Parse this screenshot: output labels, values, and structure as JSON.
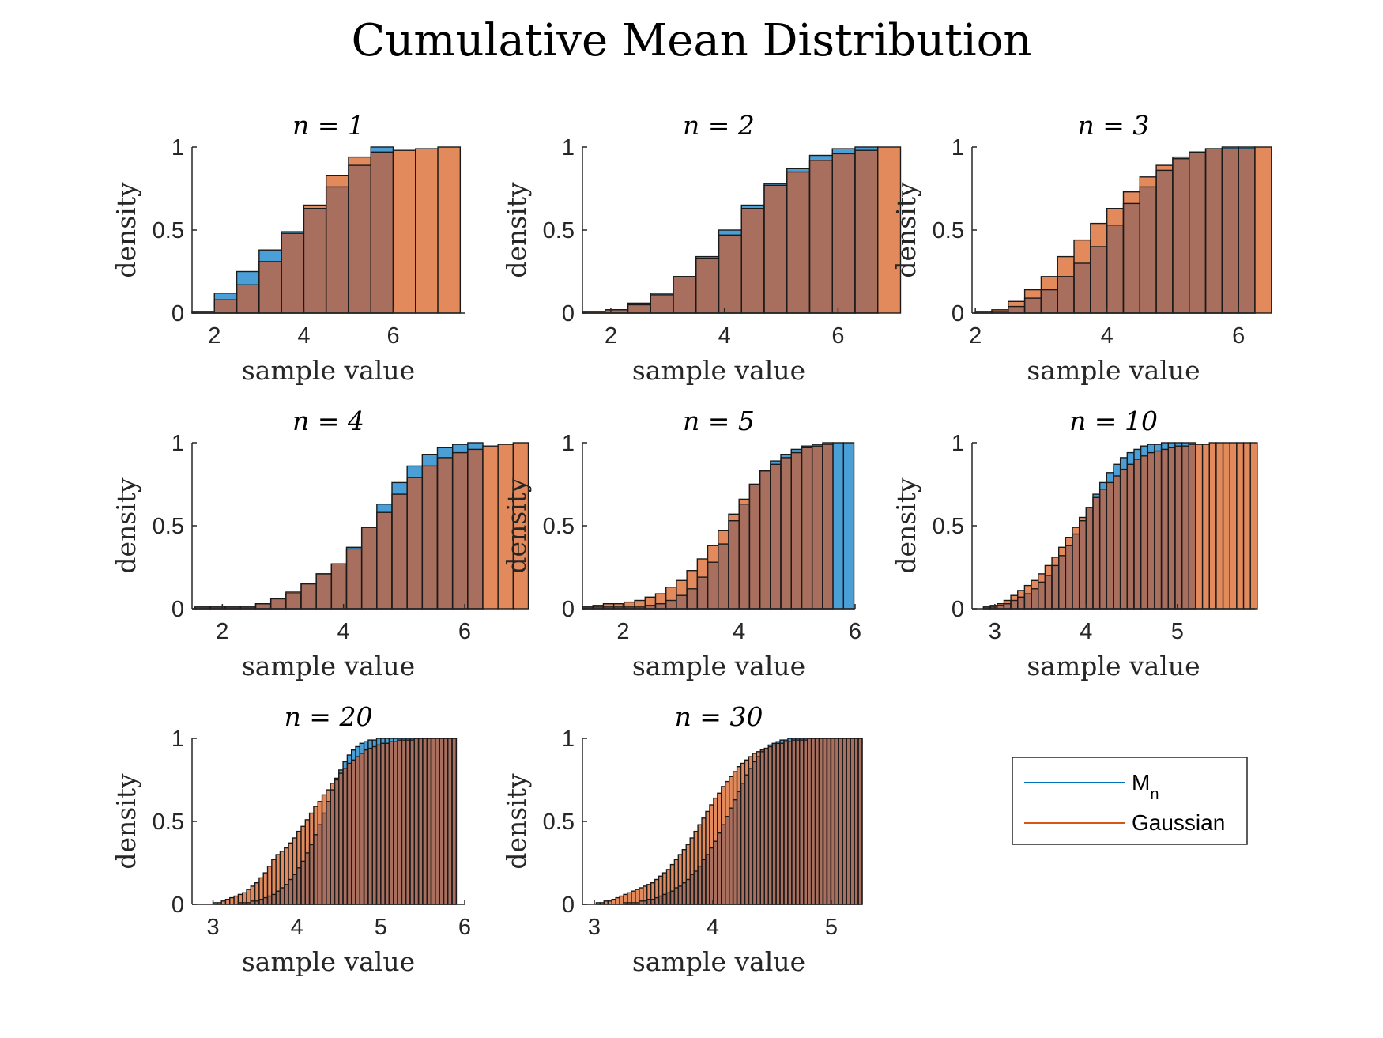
{
  "figure": {
    "title": "Cumulative Mean Distribution",
    "colors": {
      "mn": "#4a9fd6",
      "gaussian": "#e38a5c",
      "overlap": "#a86e5e",
      "edge": "#1a1a1a",
      "axis": "#262626"
    }
  },
  "legend": {
    "entries": [
      {
        "label": "M",
        "subscript": "n",
        "color": "#0072bd"
      },
      {
        "label": "Gaussian",
        "subscript": "",
        "color": "#d95319"
      }
    ]
  },
  "chart_data": [
    {
      "type": "bar",
      "title": "n = 1",
      "xlabel": "sample value",
      "ylabel": "density",
      "xlim": [
        1.5,
        7.6
      ],
      "ylim": [
        0,
        1
      ],
      "xticks": [
        2,
        4,
        6
      ],
      "yticks": [
        0,
        0.5,
        1
      ],
      "bin_start": 1.5,
      "bin_width": 0.5,
      "series": [
        {
          "name": "M_n",
          "values": [
            0.01,
            0.12,
            0.25,
            0.38,
            0.49,
            0.63,
            0.76,
            0.89,
            1.0
          ]
        },
        {
          "name": "Gaussian",
          "values": [
            0.01,
            0.08,
            0.17,
            0.31,
            0.48,
            0.65,
            0.83,
            0.94,
            0.97,
            0.98,
            0.99,
            1.0
          ]
        }
      ]
    },
    {
      "type": "bar",
      "title": "n = 2",
      "xlabel": "sample value",
      "ylabel": "density",
      "xlim": [
        1.5,
        6.3
      ],
      "ylim": [
        0,
        1
      ],
      "xticks": [
        2,
        4,
        6
      ],
      "yticks": [
        0,
        0.5,
        1
      ],
      "bin_start": 1.5,
      "bin_width": 0.4,
      "series": [
        {
          "name": "M_n",
          "values": [
            0.01,
            0.02,
            0.06,
            0.12,
            0.22,
            0.34,
            0.5,
            0.65,
            0.78,
            0.87,
            0.95,
            0.99,
            1.0
          ]
        },
        {
          "name": "Gaussian",
          "values": [
            0.01,
            0.02,
            0.05,
            0.11,
            0.22,
            0.33,
            0.47,
            0.63,
            0.77,
            0.85,
            0.92,
            0.96,
            0.98,
            1.0
          ]
        }
      ]
    },
    {
      "type": "bar",
      "title": "n = 3",
      "xlabel": "sample value",
      "ylabel": "density",
      "xlim": [
        1.95,
        6.25
      ],
      "ylim": [
        0,
        1
      ],
      "xticks": [
        2,
        4,
        6
      ],
      "yticks": [
        0,
        0.5,
        1
      ],
      "bin_start": 2.0,
      "bin_width": 0.25,
      "series": [
        {
          "name": "M_n",
          "values": [
            0.01,
            0.01,
            0.04,
            0.09,
            0.14,
            0.22,
            0.3,
            0.4,
            0.53,
            0.66,
            0.76,
            0.86,
            0.93,
            0.97,
            0.99,
            1.0,
            1.0
          ]
        },
        {
          "name": "Gaussian",
          "values": [
            0.01,
            0.02,
            0.07,
            0.14,
            0.22,
            0.34,
            0.44,
            0.54,
            0.63,
            0.73,
            0.82,
            0.89,
            0.94,
            0.97,
            0.99,
            0.99,
            0.99,
            1.0
          ]
        }
      ]
    },
    {
      "type": "bar",
      "title": "n = 4",
      "xlabel": "sample value",
      "ylabel": "density",
      "xlim": [
        1.5,
        6.0
      ],
      "ylim": [
        0,
        1
      ],
      "xticks": [
        2,
        4,
        6
      ],
      "yticks": [
        0,
        0.5,
        1
      ],
      "bin_start": 1.55,
      "bin_width": 0.25,
      "series": [
        {
          "name": "M_n",
          "values": [
            0.01,
            0.01,
            0.01,
            0.01,
            0.03,
            0.06,
            0.09,
            0.15,
            0.21,
            0.27,
            0.37,
            0.49,
            0.63,
            0.76,
            0.86,
            0.93,
            0.97,
            0.99,
            1.0
          ]
        },
        {
          "name": "Gaussian",
          "values": [
            0.01,
            0.01,
            0.01,
            0.01,
            0.03,
            0.06,
            0.1,
            0.15,
            0.21,
            0.27,
            0.36,
            0.49,
            0.58,
            0.69,
            0.79,
            0.86,
            0.91,
            0.94,
            0.96,
            0.98,
            0.99,
            1.0
          ]
        }
      ]
    },
    {
      "type": "bar",
      "title": "n = 5",
      "xlabel": "sample value",
      "ylabel": "density",
      "xlim": [
        1.3,
        6.0
      ],
      "ylim": [
        0,
        1
      ],
      "xticks": [
        2,
        4,
        6
      ],
      "yticks": [
        0,
        0.5,
        1
      ],
      "bin_start": 1.3,
      "bin_width": 0.18,
      "series": [
        {
          "name": "M_n",
          "values": [
            0.01,
            0.01,
            0.01,
            0.01,
            0.01,
            0.01,
            0.02,
            0.03,
            0.05,
            0.08,
            0.12,
            0.19,
            0.28,
            0.39,
            0.53,
            0.63,
            0.75,
            0.83,
            0.89,
            0.93,
            0.96,
            0.98,
            0.99,
            1.0,
            1.0,
            1.0
          ]
        },
        {
          "name": "Gaussian",
          "values": [
            0.01,
            0.02,
            0.03,
            0.03,
            0.04,
            0.05,
            0.07,
            0.09,
            0.13,
            0.17,
            0.23,
            0.3,
            0.38,
            0.47,
            0.57,
            0.66,
            0.75,
            0.83,
            0.87,
            0.91,
            0.94,
            0.97,
            0.98,
            0.99
          ]
        }
      ]
    },
    {
      "type": "bar",
      "title": "n = 10",
      "xlabel": "sample value",
      "ylabel": "density",
      "xlim": [
        2.75,
        5.85
      ],
      "ylim": [
        0,
        1
      ],
      "xticks": [
        3,
        4,
        5
      ],
      "yticks": [
        0,
        0.5,
        1
      ],
      "bin_start": 2.8,
      "bin_width": 0.075,
      "series": [
        {
          "name": "M_n",
          "values": [
            0.0,
            0.01,
            0.01,
            0.02,
            0.03,
            0.05,
            0.07,
            0.09,
            0.12,
            0.16,
            0.2,
            0.26,
            0.32,
            0.38,
            0.45,
            0.53,
            0.61,
            0.69,
            0.76,
            0.82,
            0.87,
            0.91,
            0.94,
            0.96,
            0.98,
            0.99,
            0.99,
            1.0,
            1.0,
            1.0,
            1.0,
            1.0
          ]
        },
        {
          "name": "Gaussian",
          "values": [
            0.0,
            0.01,
            0.02,
            0.03,
            0.05,
            0.08,
            0.11,
            0.14,
            0.17,
            0.21,
            0.26,
            0.31,
            0.37,
            0.43,
            0.49,
            0.55,
            0.61,
            0.67,
            0.72,
            0.76,
            0.8,
            0.84,
            0.87,
            0.9,
            0.92,
            0.94,
            0.95,
            0.96,
            0.97,
            0.98,
            0.98,
            0.99,
            0.99,
            0.99,
            1.0,
            1.0,
            1.0,
            1.0,
            1.0,
            1.0,
            1.0
          ]
        }
      ]
    },
    {
      "type": "bar",
      "title": "n = 20",
      "xlabel": "sample value",
      "ylabel": "density",
      "xlim": [
        2.75,
        6.0
      ],
      "ylim": [
        0,
        1
      ],
      "xticks": [
        3,
        4,
        5,
        6
      ],
      "yticks": [
        0,
        0.5,
        1
      ],
      "bin_start": 2.9,
      "bin_width": 0.05,
      "series": [
        {
          "name": "M_n",
          "values": [
            0.0,
            0.0,
            0.0,
            0.0,
            0.0,
            0.0,
            0.0,
            0.0,
            0.01,
            0.01,
            0.01,
            0.02,
            0.02,
            0.03,
            0.04,
            0.05,
            0.06,
            0.08,
            0.1,
            0.12,
            0.15,
            0.18,
            0.22,
            0.26,
            0.31,
            0.36,
            0.42,
            0.48,
            0.55,
            0.62,
            0.69,
            0.75,
            0.81,
            0.86,
            0.9,
            0.93,
            0.95,
            0.97,
            0.98,
            0.99,
            0.99,
            1.0,
            1.0,
            1.0,
            1.0,
            1.0,
            1.0,
            1.0,
            1.0,
            1.0,
            1.0,
            1.0,
            1.0,
            1.0,
            1.0,
            1.0,
            1.0,
            1.0,
            1.0,
            1.0
          ]
        },
        {
          "name": "Gaussian",
          "values": [
            0.0,
            0.0,
            0.01,
            0.01,
            0.02,
            0.03,
            0.04,
            0.05,
            0.06,
            0.07,
            0.09,
            0.11,
            0.13,
            0.16,
            0.19,
            0.23,
            0.27,
            0.3,
            0.32,
            0.34,
            0.37,
            0.4,
            0.44,
            0.47,
            0.51,
            0.55,
            0.59,
            0.62,
            0.66,
            0.69,
            0.73,
            0.76,
            0.79,
            0.82,
            0.85,
            0.87,
            0.89,
            0.91,
            0.93,
            0.94,
            0.95,
            0.96,
            0.97,
            0.97,
            0.98,
            0.98,
            0.99,
            0.99,
            0.99,
            0.99,
            1.0,
            1.0,
            1.0,
            1.0,
            1.0,
            1.0,
            1.0,
            1.0,
            1.0,
            1.0
          ]
        }
      ]
    },
    {
      "type": "bar",
      "title": "n = 30",
      "xlabel": "sample value",
      "ylabel": "density",
      "xlim": [
        2.9,
        5.2
      ],
      "ylim": [
        0,
        1
      ],
      "xticks": [
        3,
        4,
        5
      ],
      "yticks": [
        0,
        0.5,
        1
      ],
      "bin_start": 2.95,
      "bin_width": 0.033,
      "series": [
        {
          "name": "M_n",
          "values": [
            0.0,
            0.0,
            0.0,
            0.0,
            0.0,
            0.0,
            0.0,
            0.0,
            0.0,
            0.01,
            0.01,
            0.01,
            0.01,
            0.02,
            0.02,
            0.03,
            0.03,
            0.04,
            0.05,
            0.06,
            0.07,
            0.08,
            0.1,
            0.11,
            0.13,
            0.15,
            0.18,
            0.2,
            0.23,
            0.27,
            0.3,
            0.34,
            0.38,
            0.43,
            0.48,
            0.53,
            0.58,
            0.63,
            0.68,
            0.73,
            0.78,
            0.82,
            0.86,
            0.89,
            0.92,
            0.94,
            0.96,
            0.97,
            0.98,
            0.99,
            0.99,
            1.0,
            1.0,
            1.0,
            1.0,
            1.0,
            1.0,
            1.0,
            1.0,
            1.0,
            1.0,
            1.0,
            1.0,
            1.0,
            1.0,
            1.0,
            1.0,
            1.0,
            1.0,
            1.0
          ]
        },
        {
          "name": "Gaussian",
          "values": [
            0.0,
            0.0,
            0.01,
            0.01,
            0.02,
            0.02,
            0.03,
            0.04,
            0.05,
            0.06,
            0.07,
            0.08,
            0.09,
            0.1,
            0.11,
            0.12,
            0.13,
            0.15,
            0.17,
            0.19,
            0.21,
            0.24,
            0.27,
            0.3,
            0.33,
            0.36,
            0.4,
            0.44,
            0.48,
            0.52,
            0.56,
            0.6,
            0.64,
            0.67,
            0.71,
            0.74,
            0.77,
            0.8,
            0.83,
            0.85,
            0.87,
            0.89,
            0.91,
            0.92,
            0.93,
            0.94,
            0.95,
            0.96,
            0.97,
            0.97,
            0.98,
            0.98,
            0.99,
            0.99,
            0.99,
            0.99,
            1.0,
            1.0,
            1.0,
            1.0,
            1.0,
            1.0,
            1.0,
            1.0,
            1.0,
            1.0,
            1.0,
            1.0,
            1.0,
            1.0
          ]
        }
      ]
    }
  ]
}
